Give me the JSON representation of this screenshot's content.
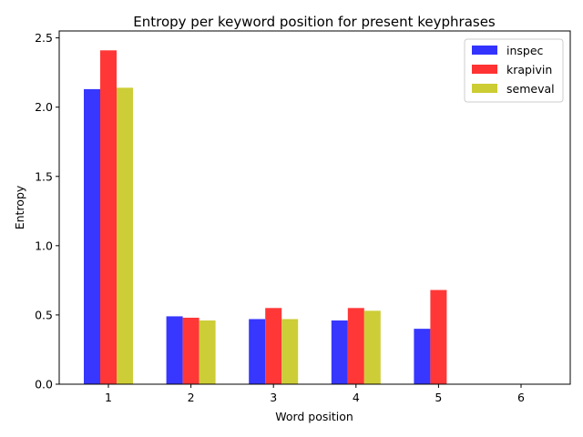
{
  "chart_data": {
    "type": "bar",
    "title": "Entropy per keyword position for present keyphrases",
    "xlabel": "Word position",
    "ylabel": "Entropy",
    "categories": [
      "1",
      "2",
      "3",
      "4",
      "5",
      "6"
    ],
    "ylim": [
      0,
      2.55
    ],
    "yticks": [
      "0.0",
      "0.5",
      "1.0",
      "1.5",
      "2.0",
      "2.5"
    ],
    "legend_position": "top-right",
    "grid": false,
    "series": [
      {
        "name": "inspec",
        "color": "#3333ff",
        "values": [
          2.13,
          0.49,
          0.47,
          0.46,
          0.4,
          0
        ]
      },
      {
        "name": "krapivin",
        "color": "#ff3333",
        "values": [
          2.41,
          0.48,
          0.55,
          0.55,
          0.68,
          0
        ]
      },
      {
        "name": "semeval",
        "color": "#cccc33",
        "values": [
          2.14,
          0.46,
          0.47,
          0.53,
          0,
          0
        ]
      }
    ]
  }
}
